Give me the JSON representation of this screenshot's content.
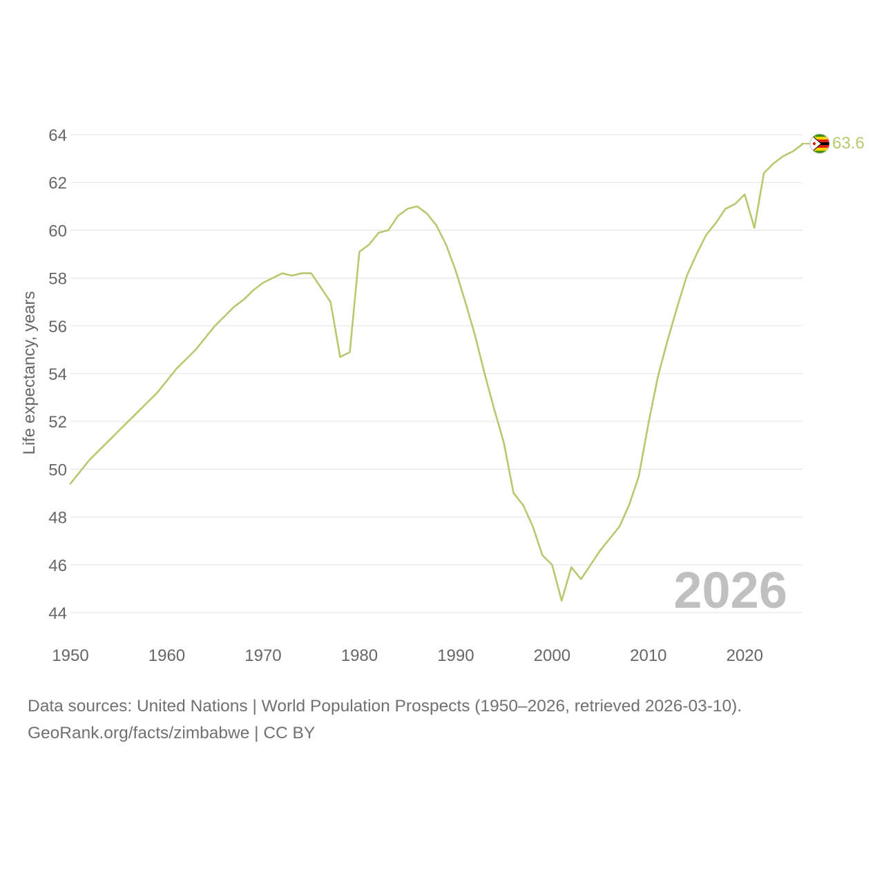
{
  "chart_data": {
    "type": "line",
    "title": "",
    "xlabel": "",
    "ylabel": "Life expectancy, years",
    "xlim": [
      1950,
      2026
    ],
    "ylim": [
      44,
      64
    ],
    "grid": true,
    "x_ticks": [
      1950,
      1960,
      1970,
      1980,
      1990,
      2000,
      2010,
      2020
    ],
    "y_ticks": [
      44,
      46,
      48,
      50,
      52,
      54,
      56,
      58,
      60,
      62,
      64
    ],
    "watermark_year": "2026",
    "series": [
      {
        "name": "Zimbabwe",
        "color": "#b5c96e",
        "end_label": "63.6",
        "x": [
          1950,
          1951,
          1952,
          1953,
          1954,
          1955,
          1956,
          1957,
          1958,
          1959,
          1960,
          1961,
          1962,
          1963,
          1964,
          1965,
          1966,
          1967,
          1968,
          1969,
          1970,
          1971,
          1972,
          1973,
          1974,
          1975,
          1976,
          1977,
          1978,
          1979,
          1980,
          1981,
          1982,
          1983,
          1984,
          1985,
          1986,
          1987,
          1988,
          1989,
          1990,
          1991,
          1992,
          1993,
          1994,
          1995,
          1996,
          1997,
          1998,
          1999,
          2000,
          2001,
          2002,
          2003,
          2004,
          2005,
          2006,
          2007,
          2008,
          2009,
          2010,
          2011,
          2012,
          2013,
          2014,
          2015,
          2016,
          2017,
          2018,
          2019,
          2020,
          2021,
          2022,
          2023,
          2024,
          2025,
          2026
        ],
        "values": [
          49.4,
          49.9,
          50.4,
          50.8,
          51.2,
          51.6,
          52.0,
          52.4,
          52.8,
          53.2,
          53.7,
          54.2,
          54.6,
          55.0,
          55.5,
          56.0,
          56.4,
          56.8,
          57.1,
          57.5,
          57.8,
          58.0,
          58.2,
          58.1,
          58.2,
          58.2,
          57.6,
          57.0,
          54.7,
          54.9,
          59.1,
          59.4,
          59.9,
          60.0,
          60.6,
          60.9,
          61.0,
          60.7,
          60.2,
          59.4,
          58.3,
          57.0,
          55.6,
          54.0,
          52.5,
          51.1,
          49.0,
          48.5,
          47.6,
          46.4,
          46.0,
          44.5,
          45.9,
          45.4,
          46.0,
          46.6,
          47.1,
          47.6,
          48.5,
          49.7,
          51.9,
          53.9,
          55.4,
          56.8,
          58.1,
          59.0,
          59.8,
          60.3,
          60.9,
          61.1,
          61.5,
          60.1,
          62.4,
          62.8,
          63.1,
          63.3,
          63.6
        ]
      }
    ]
  },
  "footer": {
    "line1": "Data sources: United Nations | World Population Prospects (1950–2026, retrieved 2026-03-10).",
    "line2": "GeoRank.org/facts/zimbabwe | CC BY"
  },
  "flag": {
    "icon": "zimbabwe-flag-icon",
    "colors": [
      "#319208",
      "#ffd200",
      "#de2010",
      "#000000",
      "#ffffff"
    ]
  }
}
